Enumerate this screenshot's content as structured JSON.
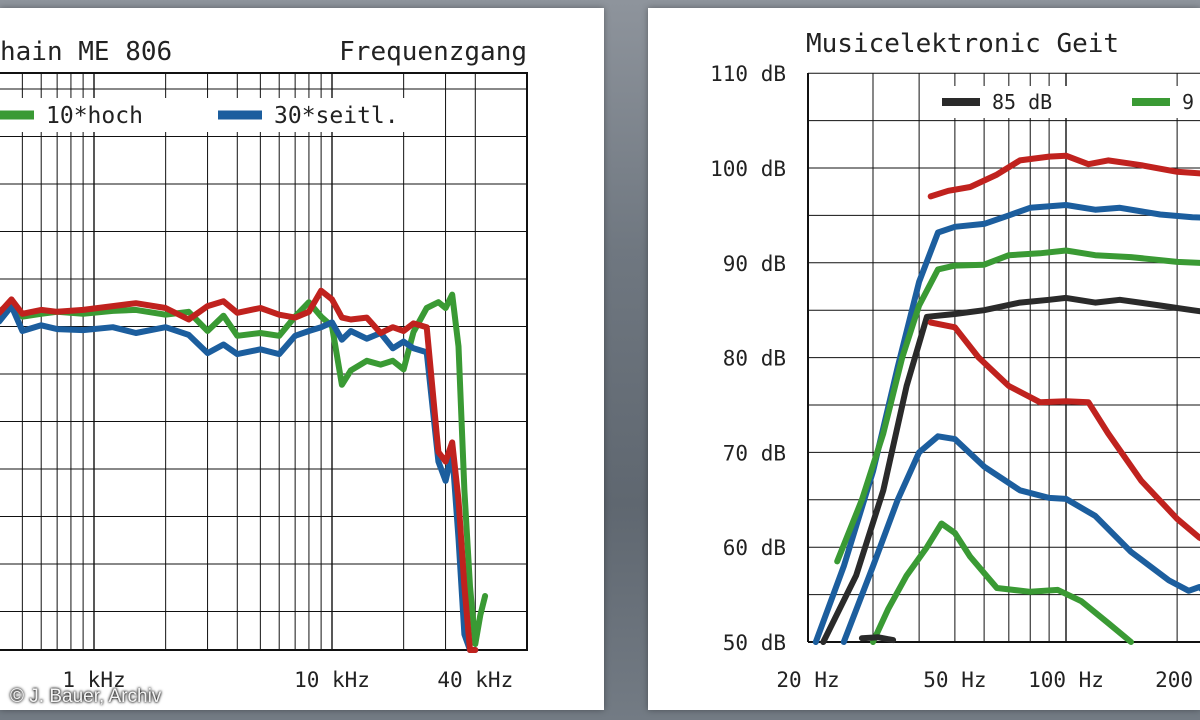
{
  "chart_data": [
    {
      "type": "line",
      "title_left": "hain ME 806",
      "title_right": "Frequenzgang",
      "x_scale": "log",
      "x_unit": "Hz",
      "x_tick_labels": [
        {
          "value": 1000,
          "label": "1 kHz"
        },
        {
          "value": 10000,
          "label": "10 kHz"
        },
        {
          "value": 40000,
          "label": "40 kHz"
        }
      ],
      "legend": [
        {
          "name": "10*hoch",
          "color": "#3a9a34"
        },
        {
          "name": "30*seitl.",
          "color": "#1c5e9e"
        }
      ],
      "grid": true,
      "series": [
        {
          "name": "10*hoch",
          "color": "#3a9a34",
          "points": [
            [
              200,
              0
            ],
            [
              250,
              -0.4
            ],
            [
              300,
              0.2
            ],
            [
              400,
              -0.4
            ],
            [
              450,
              0.6
            ],
            [
              500,
              -0.9
            ],
            [
              600,
              -0.6
            ],
            [
              700,
              -0.4
            ],
            [
              900,
              -0.6
            ],
            [
              1200,
              -0.3
            ],
            [
              1500,
              -0.2
            ],
            [
              2000,
              -0.7
            ],
            [
              2500,
              -0.4
            ],
            [
              3000,
              -2.4
            ],
            [
              3500,
              -0.8
            ],
            [
              4000,
              -2.9
            ],
            [
              5000,
              -2.6
            ],
            [
              6000,
              -2.9
            ],
            [
              7000,
              -0.9
            ],
            [
              8000,
              0.6
            ],
            [
              9000,
              -0.9
            ],
            [
              10000,
              -1.9
            ],
            [
              11000,
              -8.0
            ],
            [
              12000,
              -6.5
            ],
            [
              14000,
              -5.5
            ],
            [
              16000,
              -5.9
            ],
            [
              18000,
              -5.5
            ],
            [
              20000,
              -6.4
            ],
            [
              22000,
              -2.5
            ],
            [
              25000,
              0.0
            ],
            [
              28000,
              0.6
            ],
            [
              30000,
              0.0
            ],
            [
              32000,
              1.4
            ],
            [
              34000,
              -4.0
            ],
            [
              36000,
              -19
            ],
            [
              38000,
              -29
            ],
            [
              40000,
              -35
            ],
            [
              42000,
              -32
            ],
            [
              44000,
              -30
            ]
          ]
        },
        {
          "name": "30*seitl.",
          "color": "#1c5e9e",
          "points": [
            [
              200,
              0
            ],
            [
              250,
              -1.0
            ],
            [
              300,
              -0.5
            ],
            [
              400,
              -1.4
            ],
            [
              450,
              0.2
            ],
            [
              500,
              -2.4
            ],
            [
              600,
              -1.8
            ],
            [
              700,
              -2.2
            ],
            [
              900,
              -2.3
            ],
            [
              1200,
              -2.0
            ],
            [
              1500,
              -2.6
            ],
            [
              2000,
              -2.0
            ],
            [
              2500,
              -2.8
            ],
            [
              3000,
              -4.7
            ],
            [
              3500,
              -3.8
            ],
            [
              4000,
              -4.8
            ],
            [
              5000,
              -4.3
            ],
            [
              6000,
              -4.8
            ],
            [
              7000,
              -2.9
            ],
            [
              8000,
              -2.4
            ],
            [
              9000,
              -2.0
            ],
            [
              10000,
              -1.5
            ],
            [
              11000,
              -3.3
            ],
            [
              12000,
              -2.4
            ],
            [
              14000,
              -3.2
            ],
            [
              16000,
              -2.6
            ],
            [
              18000,
              -4.2
            ],
            [
              20000,
              -3.5
            ],
            [
              22000,
              -4.2
            ],
            [
              25000,
              -4.6
            ],
            [
              28000,
              -16
            ],
            [
              30000,
              -18
            ],
            [
              32000,
              -15
            ],
            [
              34000,
              -24
            ],
            [
              36000,
              -34
            ],
            [
              38000,
              -38
            ],
            [
              40000,
              -38
            ]
          ]
        },
        {
          "name": "",
          "color": "#c0221e",
          "points": [
            [
              200,
              0
            ],
            [
              250,
              -0.7
            ],
            [
              300,
              0
            ],
            [
              400,
              -0.5
            ],
            [
              450,
              0.9
            ],
            [
              500,
              -0.6
            ],
            [
              600,
              -0.2
            ],
            [
              700,
              -0.4
            ],
            [
              900,
              -0.2
            ],
            [
              1200,
              0.2
            ],
            [
              1500,
              0.5
            ],
            [
              2000,
              0
            ],
            [
              2500,
              -1.2
            ],
            [
              3000,
              0.2
            ],
            [
              3500,
              0.7
            ],
            [
              4000,
              -0.5
            ],
            [
              5000,
              0
            ],
            [
              6000,
              -0.7
            ],
            [
              7000,
              -1.0
            ],
            [
              8000,
              -0.4
            ],
            [
              9000,
              1.8
            ],
            [
              10000,
              0.9
            ],
            [
              11000,
              -1.0
            ],
            [
              12000,
              -1.2
            ],
            [
              14000,
              -1.0
            ],
            [
              16000,
              -2.6
            ],
            [
              18000,
              -2.0
            ],
            [
              20000,
              -2.4
            ],
            [
              22000,
              -1.6
            ],
            [
              25000,
              -2.0
            ],
            [
              28000,
              -15
            ],
            [
              30000,
              -16
            ],
            [
              32000,
              -14
            ],
            [
              34000,
              -20
            ],
            [
              36000,
              -29
            ],
            [
              38000,
              -36
            ],
            [
              40000,
              -38
            ]
          ]
        }
      ]
    },
    {
      "type": "line",
      "title": "Musicelektronic Geit",
      "x_scale": "log",
      "x_unit": "Hz",
      "y_range": [
        50,
        110
      ],
      "y_tick_labels": [
        {
          "value": 110,
          "label": "110 dB"
        },
        {
          "value": 100,
          "label": "100 dB"
        },
        {
          "value": 90,
          "label": "90 dB"
        },
        {
          "value": 80,
          "label": "80 dB"
        },
        {
          "value": 70,
          "label": "70 dB"
        },
        {
          "value": 60,
          "label": "60 dB"
        },
        {
          "value": 50,
          "label": "50 dB"
        }
      ],
      "x_tick_labels": [
        {
          "value": 20,
          "label": "20 Hz"
        },
        {
          "value": 50,
          "label": "50 Hz"
        },
        {
          "value": 100,
          "label": "100 Hz"
        },
        {
          "value": 200,
          "label": "200"
        }
      ],
      "legend": [
        {
          "name": "85 dB",
          "color": "#2a2a2a"
        },
        {
          "name": "9",
          "color": "#3a9a34"
        }
      ],
      "grid": true,
      "series": [
        {
          "name": "",
          "color": "#c0221e",
          "points": [
            [
              43,
              97
            ],
            [
              48,
              97.6
            ],
            [
              55,
              98.0
            ],
            [
              65,
              99.3
            ],
            [
              75,
              100.8
            ],
            [
              90,
              101.2
            ],
            [
              100,
              101.3
            ],
            [
              115,
              100.4
            ],
            [
              130,
              100.8
            ],
            [
              160,
              100.3
            ],
            [
              200,
              99.6
            ],
            [
              260,
              99.3
            ]
          ]
        },
        {
          "name": "",
          "color": "#1c5e9e",
          "points": [
            [
              21,
              50
            ],
            [
              25,
              58
            ],
            [
              30,
              68
            ],
            [
              35,
              79
            ],
            [
              40,
              88
            ],
            [
              45,
              93.2
            ],
            [
              50,
              93.8
            ],
            [
              60,
              94.1
            ],
            [
              70,
              95.0
            ],
            [
              80,
              95.8
            ],
            [
              100,
              96.1
            ],
            [
              120,
              95.6
            ],
            [
              140,
              95.8
            ],
            [
              180,
              95.1
            ],
            [
              220,
              94.8
            ],
            [
              260,
              94.7
            ]
          ]
        },
        {
          "name": "",
          "color": "#3a9a34",
          "points": [
            [
              24,
              58.5
            ],
            [
              28,
              65
            ],
            [
              32,
              72
            ],
            [
              36,
              80
            ],
            [
              40,
              85.5
            ],
            [
              45,
              89.3
            ],
            [
              50,
              89.7
            ],
            [
              60,
              89.8
            ],
            [
              70,
              90.8
            ],
            [
              85,
              91.0
            ],
            [
              100,
              91.3
            ],
            [
              120,
              90.8
            ],
            [
              150,
              90.6
            ],
            [
              200,
              90.1
            ],
            [
              260,
              89.9
            ]
          ]
        },
        {
          "name": "85 dB",
          "color": "#2a2a2a",
          "points": [
            [
              22,
              50
            ],
            [
              27,
              57
            ],
            [
              32,
              66
            ],
            [
              37,
              77
            ],
            [
              42,
              84.3
            ],
            [
              50,
              84.6
            ],
            [
              60,
              85.0
            ],
            [
              75,
              85.8
            ],
            [
              90,
              86.1
            ],
            [
              100,
              86.3
            ],
            [
              120,
              85.8
            ],
            [
              140,
              86.1
            ],
            [
              180,
              85.5
            ],
            [
              220,
              85.0
            ],
            [
              260,
              84.6
            ]
          ]
        },
        {
          "name": "",
          "color": "#c0221e",
          "points": [
            [
              43,
              83.7
            ],
            [
              50,
              83.2
            ],
            [
              58,
              80
            ],
            [
              70,
              77
            ],
            [
              85,
              75.3
            ],
            [
              100,
              75.4
            ],
            [
              115,
              75.3
            ],
            [
              130,
              72
            ],
            [
              160,
              67
            ],
            [
              200,
              63
            ],
            [
              230,
              61
            ],
            [
              260,
              60
            ]
          ]
        },
        {
          "name": "",
          "color": "#1c5e9e",
          "points": [
            [
              25,
              50
            ],
            [
              30,
              58
            ],
            [
              35,
              65
            ],
            [
              40,
              70
            ],
            [
              45,
              71.7
            ],
            [
              50,
              71.4
            ],
            [
              60,
              68.5
            ],
            [
              75,
              66
            ],
            [
              90,
              65.2
            ],
            [
              100,
              65.1
            ],
            [
              120,
              63.3
            ],
            [
              150,
              59.5
            ],
            [
              190,
              56.5
            ],
            [
              215,
              55.4
            ],
            [
              230,
              55.8
            ],
            [
              260,
              53.8
            ]
          ]
        },
        {
          "name": "",
          "color": "#3a9a34",
          "points": [
            [
              30,
              50
            ],
            [
              33,
              53.5
            ],
            [
              37,
              57
            ],
            [
              42,
              60
            ],
            [
              46,
              62.5
            ],
            [
              50,
              61.5
            ],
            [
              55,
              59
            ],
            [
              65,
              55.7
            ],
            [
              80,
              55.3
            ],
            [
              95,
              55.5
            ],
            [
              110,
              54.3
            ],
            [
              130,
              52
            ],
            [
              150,
              50
            ]
          ]
        },
        {
          "name": "",
          "color": "#2a2a2a",
          "points": [
            [
              28,
              50.4
            ],
            [
              31,
              50.5
            ],
            [
              34,
              50.2
            ]
          ]
        }
      ]
    }
  ],
  "credit": "© J. Bauer, Archiv"
}
